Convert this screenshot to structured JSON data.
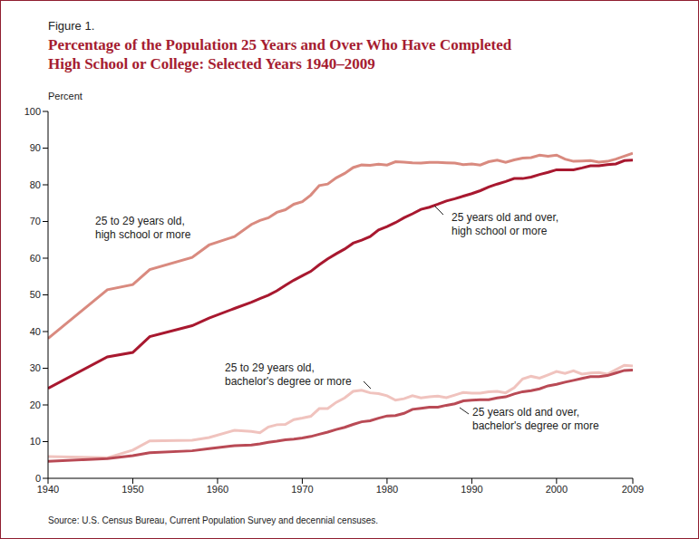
{
  "chart_data": {
    "type": "line",
    "figure_label": "Figure 1.",
    "title": "Percentage of the Population 25 Years and Over Who Have Completed\nHigh School or College: Selected Years 1940–2009",
    "ylabel": "Percent",
    "source": "Source: U.S. Census Bureau, Current Population Survey and decennial censuses.",
    "x": [
      1940,
      1947,
      1950,
      1952,
      1957,
      1959,
      1962,
      1964,
      1965,
      1966,
      1967,
      1968,
      1969,
      1970,
      1971,
      1972,
      1973,
      1974,
      1975,
      1976,
      1977,
      1978,
      1979,
      1980,
      1981,
      1982,
      1983,
      1984,
      1985,
      1986,
      1987,
      1988,
      1989,
      1990,
      1991,
      1992,
      1993,
      1994,
      1995,
      1996,
      1997,
      1998,
      1999,
      2000,
      2001,
      2002,
      2003,
      2004,
      2005,
      2006,
      2007,
      2008,
      2009
    ],
    "series": [
      {
        "name": "25 to 29 years old,\nhigh school or more",
        "color": "#d98a7f",
        "values": [
          38.1,
          51.4,
          52.8,
          56.9,
          60.2,
          63.6,
          65.9,
          69.2,
          70.3,
          71.0,
          72.5,
          73.2,
          74.7,
          75.4,
          77.2,
          79.8,
          80.2,
          81.9,
          83.1,
          84.7,
          85.4,
          85.3,
          85.6,
          85.4,
          86.3,
          86.2,
          86.0,
          85.9,
          86.1,
          86.1,
          86.0,
          85.9,
          85.5,
          85.7,
          85.4,
          86.3,
          86.7,
          86.1,
          86.8,
          87.3,
          87.4,
          88.1,
          87.8,
          88.1,
          87.0,
          86.4,
          86.5,
          86.6,
          86.2,
          86.4,
          87.0,
          87.8,
          88.6
        ]
      },
      {
        "name": "25 years old and over,\nhigh school or more",
        "color": "#a8182f",
        "values": [
          24.5,
          33.1,
          34.3,
          38.6,
          41.6,
          43.7,
          46.3,
          48.0,
          49.0,
          49.9,
          51.1,
          52.6,
          54.0,
          55.2,
          56.4,
          58.2,
          59.8,
          61.2,
          62.5,
          64.1,
          64.9,
          65.9,
          67.7,
          68.6,
          69.7,
          71.0,
          72.1,
          73.3,
          73.9,
          74.7,
          75.6,
          76.2,
          76.9,
          77.6,
          78.4,
          79.4,
          80.2,
          80.9,
          81.7,
          81.7,
          82.1,
          82.8,
          83.4,
          84.1,
          84.1,
          84.1,
          84.6,
          85.2,
          85.2,
          85.5,
          85.7,
          86.6,
          86.7
        ]
      },
      {
        "name": "25 to 29 years old,\nbachelor's degree or more",
        "color": "#f0c3be",
        "values": [
          5.9,
          5.6,
          7.7,
          10.2,
          10.4,
          11.1,
          13.1,
          12.8,
          12.4,
          14.0,
          14.6,
          14.7,
          16.0,
          16.4,
          16.9,
          19.0,
          19.0,
          20.7,
          21.9,
          23.7,
          24.0,
          23.3,
          23.1,
          22.5,
          21.3,
          21.7,
          22.5,
          21.9,
          22.2,
          22.4,
          22.0,
          22.7,
          23.4,
          23.2,
          23.2,
          23.6,
          23.7,
          23.3,
          24.7,
          27.1,
          27.8,
          27.3,
          28.2,
          29.1,
          28.6,
          29.3,
          28.4,
          28.7,
          28.8,
          28.4,
          29.6,
          30.8,
          30.6
        ]
      },
      {
        "name": "25 years old and over,\nbachelor's degree or more",
        "color": "#b94a55",
        "values": [
          4.6,
          5.4,
          6.2,
          7.0,
          7.5,
          8.1,
          8.9,
          9.1,
          9.4,
          9.8,
          10.1,
          10.5,
          10.7,
          11.0,
          11.4,
          12.0,
          12.6,
          13.3,
          13.9,
          14.7,
          15.4,
          15.7,
          16.4,
          17.0,
          17.1,
          17.7,
          18.8,
          19.1,
          19.4,
          19.4,
          19.9,
          20.3,
          21.1,
          21.3,
          21.4,
          21.4,
          21.9,
          22.2,
          23.0,
          23.6,
          23.9,
          24.4,
          25.2,
          25.6,
          26.2,
          26.7,
          27.2,
          27.7,
          27.7,
          28.0,
          28.7,
          29.4,
          29.5
        ]
      }
    ],
    "xlim": [
      1940,
      2009
    ],
    "xticks": [
      1940,
      1950,
      1960,
      1970,
      1980,
      1990,
      2000,
      2009
    ],
    "ylim": [
      0,
      100
    ],
    "yticks": [
      0,
      10,
      20,
      30,
      40,
      50,
      60,
      70,
      80,
      90,
      100
    ],
    "grid": false
  }
}
